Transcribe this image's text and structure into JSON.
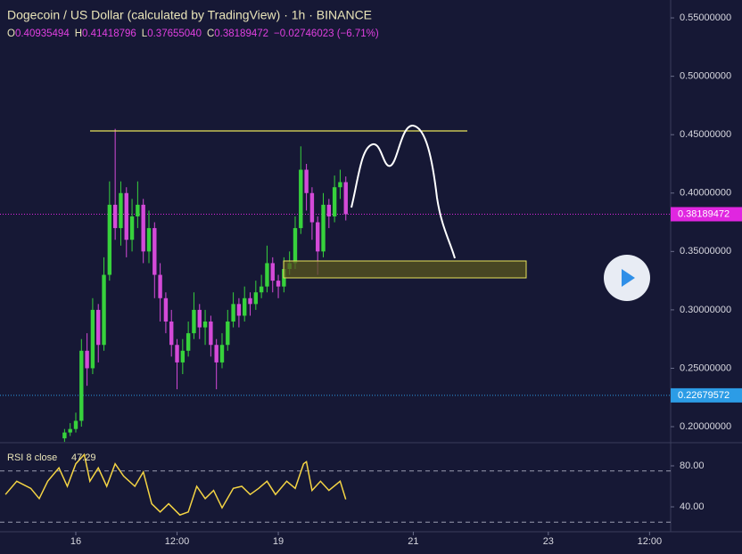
{
  "chart_data": [
    {
      "type": "candlestick",
      "title": "Dogecoin / US Dollar (calculated by TradingView) · 1h · BINANCE",
      "legend": [
        {
          "key": "O",
          "value": "0.40935494"
        },
        {
          "key": "H",
          "value": "0.41418796"
        },
        {
          "key": "L",
          "value": "0.37655040"
        },
        {
          "key": "C",
          "value": "0.38189472"
        }
      ],
      "change": "−0.02746023 (−6.71%)",
      "x": [
        -4,
        -2,
        0,
        2,
        4,
        6,
        8,
        10,
        12,
        14,
        16,
        18,
        20,
        22,
        24,
        26,
        28,
        30,
        32,
        34,
        36,
        38,
        40,
        42,
        44,
        46,
        48,
        50,
        52,
        54,
        56,
        58,
        60,
        62,
        64,
        66,
        68,
        70,
        72,
        74,
        76,
        78,
        80,
        82,
        84,
        86,
        88,
        90,
        92,
        94,
        96
      ],
      "open": [
        0.19,
        0.195,
        0.198,
        0.205,
        0.265,
        0.25,
        0.3,
        0.27,
        0.33,
        0.39,
        0.37,
        0.4,
        0.36,
        0.38,
        0.39,
        0.35,
        0.37,
        0.33,
        0.31,
        0.29,
        0.27,
        0.255,
        0.265,
        0.28,
        0.3,
        0.285,
        0.29,
        0.27,
        0.255,
        0.27,
        0.29,
        0.305,
        0.295,
        0.31,
        0.305,
        0.315,
        0.32,
        0.34,
        0.325,
        0.32,
        0.335,
        0.34,
        0.37,
        0.42,
        0.4,
        0.375,
        0.35,
        0.39,
        0.38,
        0.405,
        0.40935494
      ],
      "high": [
        0.198,
        0.203,
        0.212,
        0.275,
        0.28,
        0.31,
        0.305,
        0.345,
        0.41,
        0.455,
        0.41,
        0.405,
        0.395,
        0.41,
        0.395,
        0.385,
        0.375,
        0.34,
        0.315,
        0.3,
        0.275,
        0.275,
        0.29,
        0.315,
        0.305,
        0.3,
        0.295,
        0.275,
        0.28,
        0.3,
        0.315,
        0.31,
        0.32,
        0.315,
        0.325,
        0.33,
        0.355,
        0.345,
        0.33,
        0.345,
        0.35,
        0.38,
        0.44,
        0.425,
        0.405,
        0.38,
        0.4,
        0.395,
        0.415,
        0.42,
        0.41418796
      ],
      "low": [
        0.187,
        0.192,
        0.195,
        0.2,
        0.235,
        0.245,
        0.255,
        0.265,
        0.325,
        0.36,
        0.355,
        0.345,
        0.35,
        0.37,
        0.34,
        0.34,
        0.31,
        0.29,
        0.28,
        0.26,
        0.232,
        0.245,
        0.26,
        0.275,
        0.275,
        0.27,
        0.26,
        0.232,
        0.25,
        0.265,
        0.285,
        0.285,
        0.29,
        0.295,
        0.3,
        0.31,
        0.315,
        0.315,
        0.31,
        0.315,
        0.33,
        0.335,
        0.365,
        0.385,
        0.36,
        0.33,
        0.345,
        0.37,
        0.375,
        0.395,
        0.3765504
      ],
      "close": [
        0.195,
        0.198,
        0.205,
        0.265,
        0.25,
        0.3,
        0.27,
        0.33,
        0.39,
        0.37,
        0.4,
        0.36,
        0.38,
        0.39,
        0.35,
        0.37,
        0.33,
        0.31,
        0.29,
        0.27,
        0.255,
        0.265,
        0.28,
        0.3,
        0.285,
        0.29,
        0.27,
        0.255,
        0.27,
        0.29,
        0.305,
        0.295,
        0.31,
        0.305,
        0.315,
        0.32,
        0.34,
        0.325,
        0.32,
        0.335,
        0.34,
        0.37,
        0.42,
        0.4,
        0.375,
        0.35,
        0.39,
        0.38,
        0.405,
        0.40935494,
        0.38189472
      ],
      "up_color": "#37d23c",
      "down_color": "#d44ad8",
      "xlim": [
        -26.95,
        211.5
      ],
      "ylim": [
        0.1863,
        0.5653
      ],
      "yticks": [
        {
          "value": 0.55,
          "label": "0.55000000"
        },
        {
          "value": 0.5,
          "label": "0.50000000"
        },
        {
          "value": 0.45,
          "label": "0.45000000"
        },
        {
          "value": 0.4,
          "label": "0.40000000"
        },
        {
          "value": 0.35,
          "label": "0.35000000"
        },
        {
          "value": 0.3,
          "label": "0.30000000"
        },
        {
          "value": 0.25,
          "label": "0.25000000"
        },
        {
          "value": 0.2,
          "label": "0.20000000"
        }
      ],
      "price_lines": [
        {
          "value": 0.38189472,
          "label": "0.38189472",
          "color": "#e026e0"
        },
        {
          "value": 0.22679572,
          "label": "0.22679572",
          "color": "#2c9ce6"
        }
      ]
    },
    {
      "type": "line",
      "series": [
        {
          "name": "RSI 8 close",
          "color": "#f4d444",
          "x": [
            -25,
            -21,
            -16,
            -13,
            -10,
            -6,
            -3,
            0,
            3,
            5,
            8,
            11,
            14,
            17,
            21,
            24,
            27,
            30,
            33,
            37,
            40,
            43,
            46,
            49,
            52,
            56,
            59,
            62,
            65,
            68,
            71,
            75,
            78,
            81,
            82,
            84,
            87,
            90,
            94,
            96
          ],
          "values": [
            52,
            65,
            58,
            48,
            65,
            78,
            60,
            82,
            91,
            65,
            78,
            60,
            82,
            70,
            60,
            74,
            43,
            35,
            43,
            32,
            35,
            60,
            48,
            56,
            39,
            58,
            60,
            52,
            58,
            65,
            52,
            65,
            58,
            82,
            84,
            56,
            65,
            56,
            65,
            47.29
          ]
        }
      ],
      "xlim": [
        -26.95,
        211.5
      ],
      "ylim": [
        15.7,
        102.6
      ],
      "yticks": [
        {
          "value": 80,
          "label": "80.00"
        },
        {
          "value": 40,
          "label": "40.00"
        }
      ],
      "levels": [
        75,
        25
      ],
      "xticks": [
        {
          "value": 0,
          "label": "16"
        },
        {
          "value": 36,
          "label": "12:00"
        },
        {
          "value": 72,
          "label": "19"
        },
        {
          "value": 120,
          "label": "21"
        },
        {
          "value": 168,
          "label": "23"
        },
        {
          "value": 204,
          "label": "12:00"
        }
      ]
    }
  ]
}
